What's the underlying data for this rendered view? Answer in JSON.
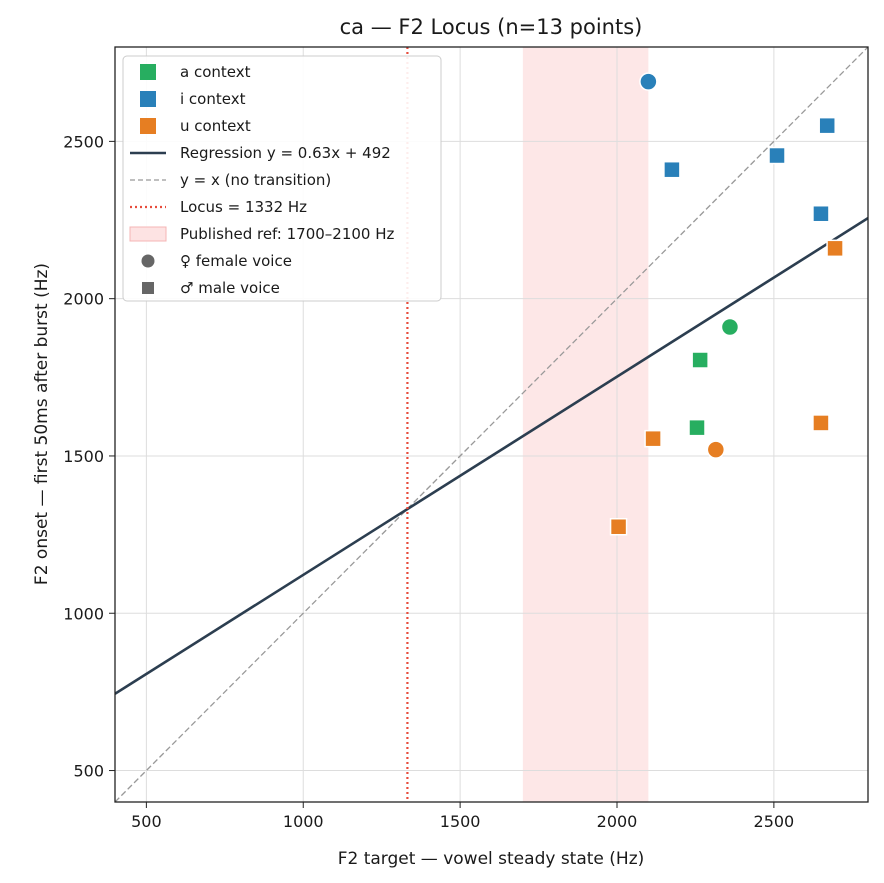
{
  "chart_data": {
    "type": "scatter",
    "title": "ca  —  F2 Locus  (n=13 points)",
    "xlabel": "F2 target — vowel steady state (Hz)",
    "ylabel": "F2 onset — first 50ms after burst (Hz)",
    "xlim": [
      400,
      2800
    ],
    "ylim": [
      400,
      2800
    ],
    "xticks": [
      500,
      1000,
      1500,
      2000,
      2500
    ],
    "yticks": [
      500,
      1000,
      1500,
      2000,
      2500
    ],
    "grid": true,
    "legend_placement": "top-left",
    "colors": {
      "a": "#27ae60",
      "i": "#2980b9",
      "u": "#e67e22",
      "regression": "#2c3e50",
      "identity": "#999999",
      "locus": "#e74c3c",
      "band": "#fde3e3"
    },
    "legend": [
      {
        "label": "a context",
        "kind": "square",
        "color": "#27ae60"
      },
      {
        "label": "i context",
        "kind": "square",
        "color": "#2980b9"
      },
      {
        "label": "u context",
        "kind": "square",
        "color": "#e67e22"
      },
      {
        "label": "Regression  y = 0.63x + 492",
        "kind": "solid",
        "color": "#2c3e50"
      },
      {
        "label": "y = x  (no transition)",
        "kind": "dashed",
        "color": "#999999"
      },
      {
        "label": "Locus = 1332 Hz",
        "kind": "dotted",
        "color": "#e74c3c"
      },
      {
        "label": "Published ref: 1700–2100 Hz",
        "kind": "band",
        "color": "#fde3e3"
      },
      {
        "label": "♀ female voice",
        "kind": "circle",
        "color": "#666666"
      },
      {
        "label": "♂ male voice",
        "kind": "msquare",
        "color": "#666666"
      }
    ],
    "regression": {
      "slope": 0.63,
      "intercept": 492
    },
    "locus": 1332,
    "published_band": [
      1700,
      2100
    ],
    "points": [
      {
        "x": 2100,
        "y": 2690,
        "context": "i",
        "voice": "female"
      },
      {
        "x": 2175,
        "y": 2410,
        "context": "i",
        "voice": "male"
      },
      {
        "x": 2510,
        "y": 2455,
        "context": "i",
        "voice": "male"
      },
      {
        "x": 2670,
        "y": 2550,
        "context": "i",
        "voice": "male"
      },
      {
        "x": 2650,
        "y": 2270,
        "context": "i",
        "voice": "male"
      },
      {
        "x": 2695,
        "y": 2160,
        "context": "u",
        "voice": "male"
      },
      {
        "x": 2360,
        "y": 1910,
        "context": "a",
        "voice": "female"
      },
      {
        "x": 2265,
        "y": 1805,
        "context": "a",
        "voice": "male"
      },
      {
        "x": 2255,
        "y": 1590,
        "context": "a",
        "voice": "male"
      },
      {
        "x": 2115,
        "y": 1555,
        "context": "u",
        "voice": "male"
      },
      {
        "x": 2315,
        "y": 1520,
        "context": "u",
        "voice": "female"
      },
      {
        "x": 2650,
        "y": 1605,
        "context": "u",
        "voice": "male"
      },
      {
        "x": 2005,
        "y": 1275,
        "context": "u",
        "voice": "male"
      }
    ]
  }
}
